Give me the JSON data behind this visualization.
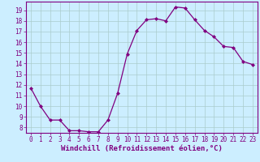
{
  "hours": [
    0,
    1,
    2,
    3,
    4,
    5,
    6,
    7,
    8,
    9,
    10,
    11,
    12,
    13,
    14,
    15,
    16,
    17,
    18,
    19,
    20,
    21,
    22,
    23
  ],
  "temps": [
    11.7,
    10.0,
    8.7,
    8.7,
    7.7,
    7.7,
    7.6,
    7.6,
    8.7,
    11.2,
    14.9,
    17.1,
    18.1,
    18.2,
    18.0,
    19.3,
    19.2,
    18.1,
    17.1,
    16.5,
    15.6,
    15.5,
    14.2,
    13.9
  ],
  "line_color": "#800080",
  "marker": "D",
  "marker_size": 2.0,
  "bg_color": "#cceeff",
  "grid_color": "#aacccc",
  "xlabel": "Windchill (Refroidissement éolien,°C)",
  "ylim": [
    7.5,
    19.8
  ],
  "yticks": [
    8,
    9,
    10,
    11,
    12,
    13,
    14,
    15,
    16,
    17,
    18,
    19
  ],
  "xlim": [
    -0.5,
    23.5
  ],
  "tick_color": "#800080",
  "tick_fontsize": 5.5,
  "xlabel_fontsize": 6.5,
  "spine_color": "#800080",
  "line_width": 0.9
}
